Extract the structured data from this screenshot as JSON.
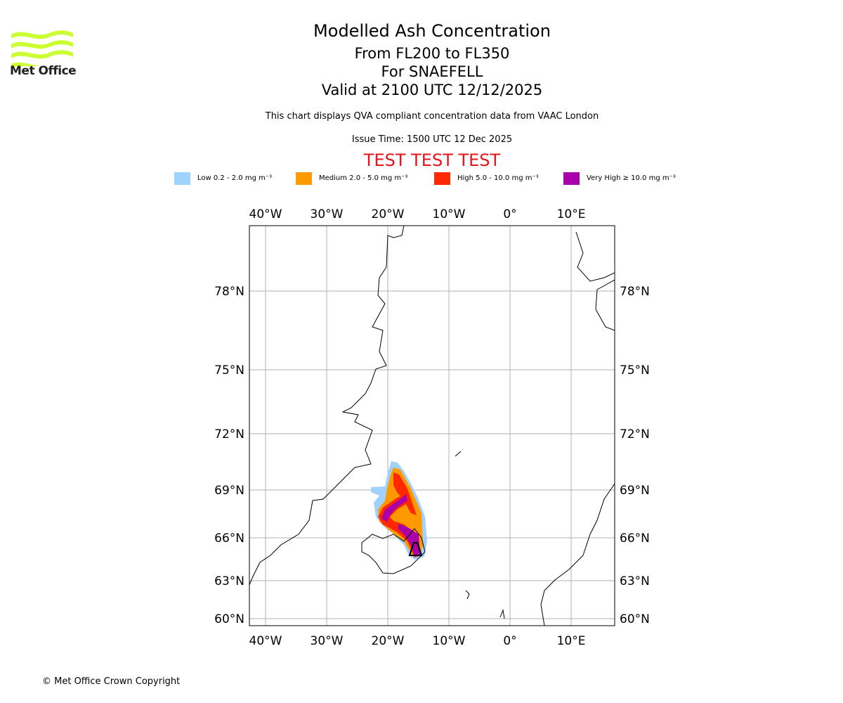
{
  "logo": {
    "text": "Met Office",
    "color": "#ccff33"
  },
  "header": {
    "title": "Modelled Ash Concentration",
    "levels": "From FL200 to FL350",
    "volcano": "For SNAEFELL",
    "valid": "Valid at 2100 UTC 12/12/2025",
    "note": "This chart displays QVA compliant concentration data from VAAC London",
    "issue": "Issue Time: 1500 UTC 12 Dec 2025",
    "test": "TEST TEST TEST"
  },
  "legend": [
    {
      "label": "Low 0.2 - 2.0 mg m⁻³",
      "color": "#a0d2ff"
    },
    {
      "label": "Medium 2.0 - 5.0 mg m⁻³",
      "color": "#ff9900"
    },
    {
      "label": "High 5.0 - 10.0 mg m⁻³",
      "color": "#ff2800"
    },
    {
      "label": "Very High ≥ 10.0 mg m⁻³",
      "color": "#aa00aa"
    }
  ],
  "chart_data": {
    "type": "map",
    "projection": "Mercator",
    "lon_ticks": [
      "40°W",
      "30°W",
      "20°W",
      "10°W",
      "0°",
      "10°E"
    ],
    "lat_ticks": [
      "78°N",
      "75°N",
      "72°N",
      "69°N",
      "66°N",
      "63°N",
      "60°N"
    ],
    "lon_range": [
      -42.6,
      17.1
    ],
    "lat_range": [
      59.5,
      80.0
    ],
    "grid": true,
    "ash_levels": [
      "Low",
      "Medium",
      "High",
      "Very High"
    ],
    "source_location": "Iceland (SNAEFELL)"
  },
  "footer": {
    "copyright": "© Met Office Crown Copyright"
  }
}
